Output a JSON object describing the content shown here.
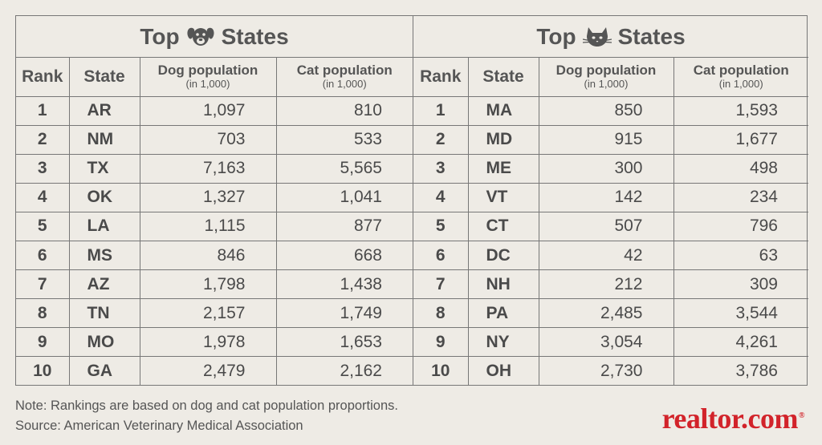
{
  "left": {
    "title_prefix": "Top",
    "title_suffix": "States",
    "icon": "dog-icon",
    "headers": {
      "rank": "Rank",
      "state": "State",
      "dog": "Dog population",
      "dog_unit": "(in 1,000)",
      "cat": "Cat population",
      "cat_unit": "(in 1,000)"
    },
    "rows": [
      {
        "rank": "1",
        "state": "AR",
        "dog": "1,097",
        "cat": "810"
      },
      {
        "rank": "2",
        "state": "NM",
        "dog": "703",
        "cat": "533"
      },
      {
        "rank": "3",
        "state": "TX",
        "dog": "7,163",
        "cat": "5,565"
      },
      {
        "rank": "4",
        "state": "OK",
        "dog": "1,327",
        "cat": "1,041"
      },
      {
        "rank": "5",
        "state": "LA",
        "dog": "1,115",
        "cat": "877"
      },
      {
        "rank": "6",
        "state": "MS",
        "dog": "846",
        "cat": "668"
      },
      {
        "rank": "7",
        "state": "AZ",
        "dog": "1,798",
        "cat": "1,438"
      },
      {
        "rank": "8",
        "state": "TN",
        "dog": "2,157",
        "cat": "1,749"
      },
      {
        "rank": "9",
        "state": "MO",
        "dog": "1,978",
        "cat": "1,653"
      },
      {
        "rank": "10",
        "state": "GA",
        "dog": "2,479",
        "cat": "2,162"
      }
    ]
  },
  "right": {
    "title_prefix": "Top",
    "title_suffix": "States",
    "icon": "cat-icon",
    "headers": {
      "rank": "Rank",
      "state": "State",
      "dog": "Dog population",
      "dog_unit": "(in 1,000)",
      "cat": "Cat population",
      "cat_unit": "(in 1,000)"
    },
    "rows": [
      {
        "rank": "1",
        "state": "MA",
        "dog": "850",
        "cat": "1,593"
      },
      {
        "rank": "2",
        "state": "MD",
        "dog": "915",
        "cat": "1,677"
      },
      {
        "rank": "3",
        "state": "ME",
        "dog": "300",
        "cat": "498"
      },
      {
        "rank": "4",
        "state": "VT",
        "dog": "142",
        "cat": "234"
      },
      {
        "rank": "5",
        "state": "CT",
        "dog": "507",
        "cat": "796"
      },
      {
        "rank": "6",
        "state": "DC",
        "dog": "42",
        "cat": "63"
      },
      {
        "rank": "7",
        "state": "NH",
        "dog": "212",
        "cat": "309"
      },
      {
        "rank": "8",
        "state": "PA",
        "dog": "2,485",
        "cat": "3,544"
      },
      {
        "rank": "9",
        "state": "NY",
        "dog": "3,054",
        "cat": "4,261"
      },
      {
        "rank": "10",
        "state": "OH",
        "dog": "2,730",
        "cat": "3,786"
      }
    ]
  },
  "footer": {
    "note": "Note: Rankings are based on dog and cat population proportions.",
    "source": "Source: American Veterinary Medical Association"
  },
  "logo": {
    "text": "realtor.com",
    "mark": "®"
  },
  "colors": {
    "background": "#eeebe5",
    "text": "#4a4a4a",
    "grid": "#777777",
    "brand": "#d2232a"
  },
  "chart_data": {
    "type": "table",
    "tables": [
      {
        "title": "Top [dog] States",
        "columns": [
          "Rank",
          "State",
          "Dog population (in 1,000)",
          "Cat population (in 1,000)"
        ],
        "rows": [
          [
            1,
            "AR",
            1097,
            810
          ],
          [
            2,
            "NM",
            703,
            533
          ],
          [
            3,
            "TX",
            7163,
            5565
          ],
          [
            4,
            "OK",
            1327,
            1041
          ],
          [
            5,
            "LA",
            1115,
            877
          ],
          [
            6,
            "MS",
            846,
            668
          ],
          [
            7,
            "AZ",
            1798,
            1438
          ],
          [
            8,
            "TN",
            2157,
            1749
          ],
          [
            9,
            "MO",
            1978,
            1653
          ],
          [
            10,
            "GA",
            2479,
            2162
          ]
        ]
      },
      {
        "title": "Top [cat] States",
        "columns": [
          "Rank",
          "State",
          "Dog population (in 1,000)",
          "Cat population (in 1,000)"
        ],
        "rows": [
          [
            1,
            "MA",
            850,
            1593
          ],
          [
            2,
            "MD",
            915,
            1677
          ],
          [
            3,
            "ME",
            300,
            498
          ],
          [
            4,
            "VT",
            142,
            234
          ],
          [
            5,
            "CT",
            507,
            796
          ],
          [
            6,
            "DC",
            42,
            63
          ],
          [
            7,
            "NH",
            212,
            309
          ],
          [
            8,
            "PA",
            2485,
            3544
          ],
          [
            9,
            "NY",
            3054,
            4261
          ],
          [
            10,
            "OH",
            2730,
            3786
          ]
        ]
      }
    ]
  }
}
